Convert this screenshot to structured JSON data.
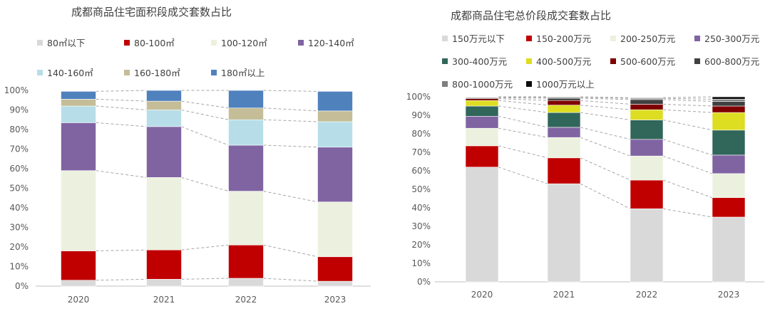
{
  "chart_data": [
    {
      "type": "bar",
      "stacked": true,
      "title": "成都商品住宅面积段成交套数占比",
      "categories": [
        "2020",
        "2021",
        "2022",
        "2023"
      ],
      "ylim": [
        0,
        100
      ],
      "yticks": [
        "0%",
        "10%",
        "20%",
        "30%",
        "40%",
        "50%",
        "60%",
        "70%",
        "80%",
        "90%",
        "100%"
      ],
      "legend_position": "top",
      "series": [
        {
          "name": "80㎡以下",
          "color": "#d9d9d9",
          "values": [
            3,
            3.5,
            4,
            2.5
          ]
        },
        {
          "name": "80-100㎡",
          "color": "#c00000",
          "values": [
            15,
            15,
            17,
            12.5
          ]
        },
        {
          "name": "100-120㎡",
          "color": "#ebf1de",
          "values": [
            41,
            37,
            27.5,
            28
          ]
        },
        {
          "name": "120-140㎡",
          "color": "#8064a2",
          "values": [
            24.5,
            26,
            23.5,
            28
          ]
        },
        {
          "name": "140-160㎡",
          "color": "#b7dee8",
          "values": [
            8.5,
            8.5,
            13,
            13
          ]
        },
        {
          "name": "160-180㎡",
          "color": "#c4bd97",
          "values": [
            3.5,
            4.5,
            6,
            5.5
          ]
        },
        {
          "name": "180㎡以上",
          "color": "#4f81bd",
          "values": [
            4,
            5.5,
            9,
            10
          ]
        }
      ]
    },
    {
      "type": "bar",
      "stacked": true,
      "title": "成都商品住宅总价段成交套数占比",
      "categories": [
        "2020",
        "2021",
        "2022",
        "2023"
      ],
      "ylim": [
        0,
        100
      ],
      "yticks": [
        "0%",
        "10%",
        "20%",
        "30%",
        "40%",
        "50%",
        "60%",
        "70%",
        "80%",
        "90%",
        "100%"
      ],
      "legend_position": "top",
      "series": [
        {
          "name": "150万元以下",
          "color": "#d9d9d9",
          "values": [
            62,
            53,
            39.5,
            35
          ]
        },
        {
          "name": "150-200万元",
          "color": "#c00000",
          "values": [
            11.5,
            14,
            15.5,
            10.5
          ]
        },
        {
          "name": "200-250万元",
          "color": "#ebf1de",
          "values": [
            9.5,
            11,
            13,
            13
          ]
        },
        {
          "name": "250-300万元",
          "color": "#8064a2",
          "values": [
            6.5,
            5.5,
            9,
            10
          ]
        },
        {
          "name": "300-400万元",
          "color": "#31665a",
          "values": [
            5.5,
            8,
            10.5,
            13.5
          ]
        },
        {
          "name": "400-500万元",
          "color": "#dddd22",
          "values": [
            3,
            4,
            5.5,
            9.5
          ]
        },
        {
          "name": "500-600万元",
          "color": "#7f0000",
          "values": [
            1,
            2.5,
            3,
            3.5
          ]
        },
        {
          "name": "600-800万元",
          "color": "#404040",
          "values": [
            0.5,
            1.2,
            2.5,
            2.5
          ]
        },
        {
          "name": "800-1000万元",
          "color": "#7f7f7f",
          "values": [
            0.3,
            0.5,
            0.7,
            1.2
          ]
        },
        {
          "name": "1000万元以上",
          "color": "#0d0d0d",
          "values": [
            0.2,
            0.3,
            0.3,
            1.3
          ]
        }
      ]
    }
  ]
}
